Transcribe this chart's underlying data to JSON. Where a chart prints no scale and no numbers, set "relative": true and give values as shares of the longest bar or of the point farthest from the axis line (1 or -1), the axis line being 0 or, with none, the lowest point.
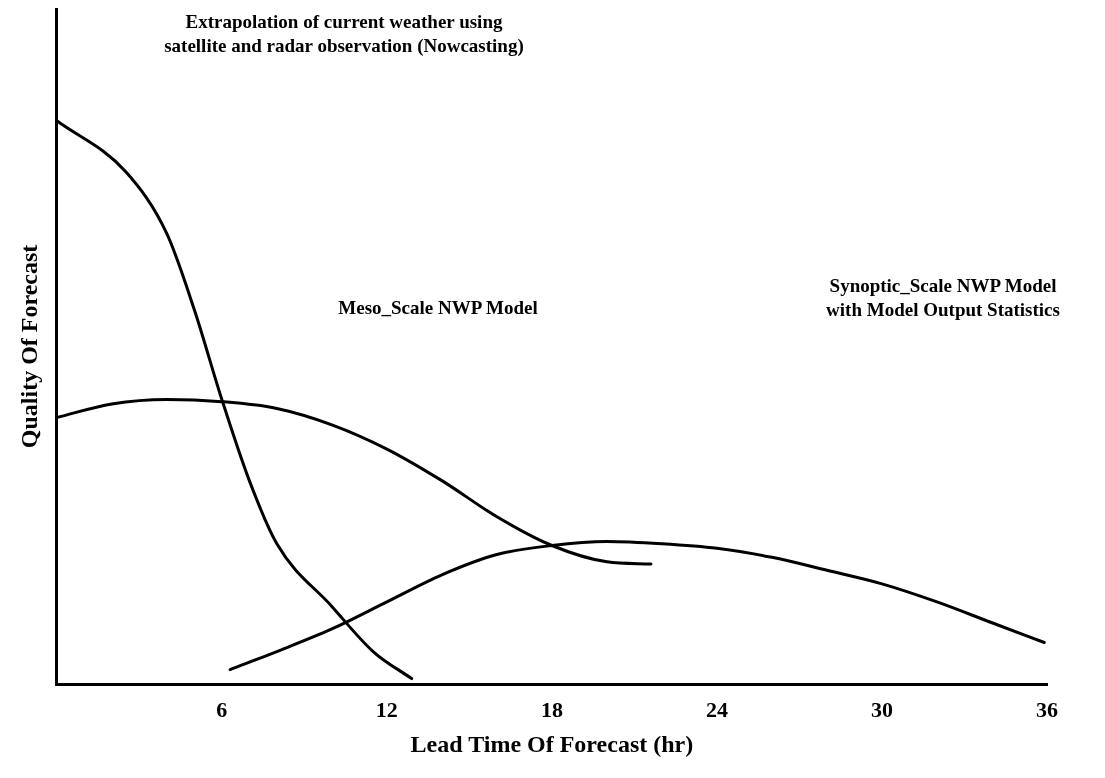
{
  "chart_data": {
    "type": "line",
    "relative": true,
    "xlabel": "Lead Time Of Forecast (hr)",
    "ylabel": "Quality Of Forecast",
    "xlim": [
      0,
      36
    ],
    "xticks": [
      6,
      12,
      18,
      24,
      30,
      36
    ],
    "tick_labels": "x",
    "grid": false,
    "legend": false,
    "marker": "none",
    "line_style": "solid",
    "series": [
      {
        "color": "#000000",
        "x": [
          0,
          2.5,
          4,
          5,
          6,
          7,
          8,
          10,
          11.5,
          12.9
        ],
        "values": [
          1.0,
          0.91,
          0.8,
          0.665,
          0.506,
          0.362,
          0.25,
          0.139,
          0.059,
          0.011
        ]
      },
      {
        "color": "#000000",
        "x": [
          0,
          2,
          4,
          6,
          8,
          10,
          12,
          14,
          16,
          18,
          20,
          21.6
        ],
        "values": [
          0.474,
          0.498,
          0.506,
          0.502,
          0.49,
          0.461,
          0.418,
          0.362,
          0.298,
          0.247,
          0.218,
          0.214
        ]
      },
      {
        "color": "#000000",
        "x": [
          6.3,
          8,
          10,
          12,
          14,
          16,
          18,
          20,
          22,
          24,
          26,
          28,
          30,
          32,
          34,
          35.9
        ],
        "values": [
          0.027,
          0.059,
          0.099,
          0.147,
          0.195,
          0.231,
          0.247,
          0.254,
          0.25,
          0.242,
          0.226,
          0.203,
          0.179,
          0.147,
          0.11,
          0.075
        ]
      }
    ],
    "annotations": [
      "Extrapolation of current weather using\nsatellite and radar observation (Nowcasting)",
      "Meso_Scale NWP Model",
      "Synoptic_Scale NWP Model\nwith Model Output Statistics"
    ]
  }
}
